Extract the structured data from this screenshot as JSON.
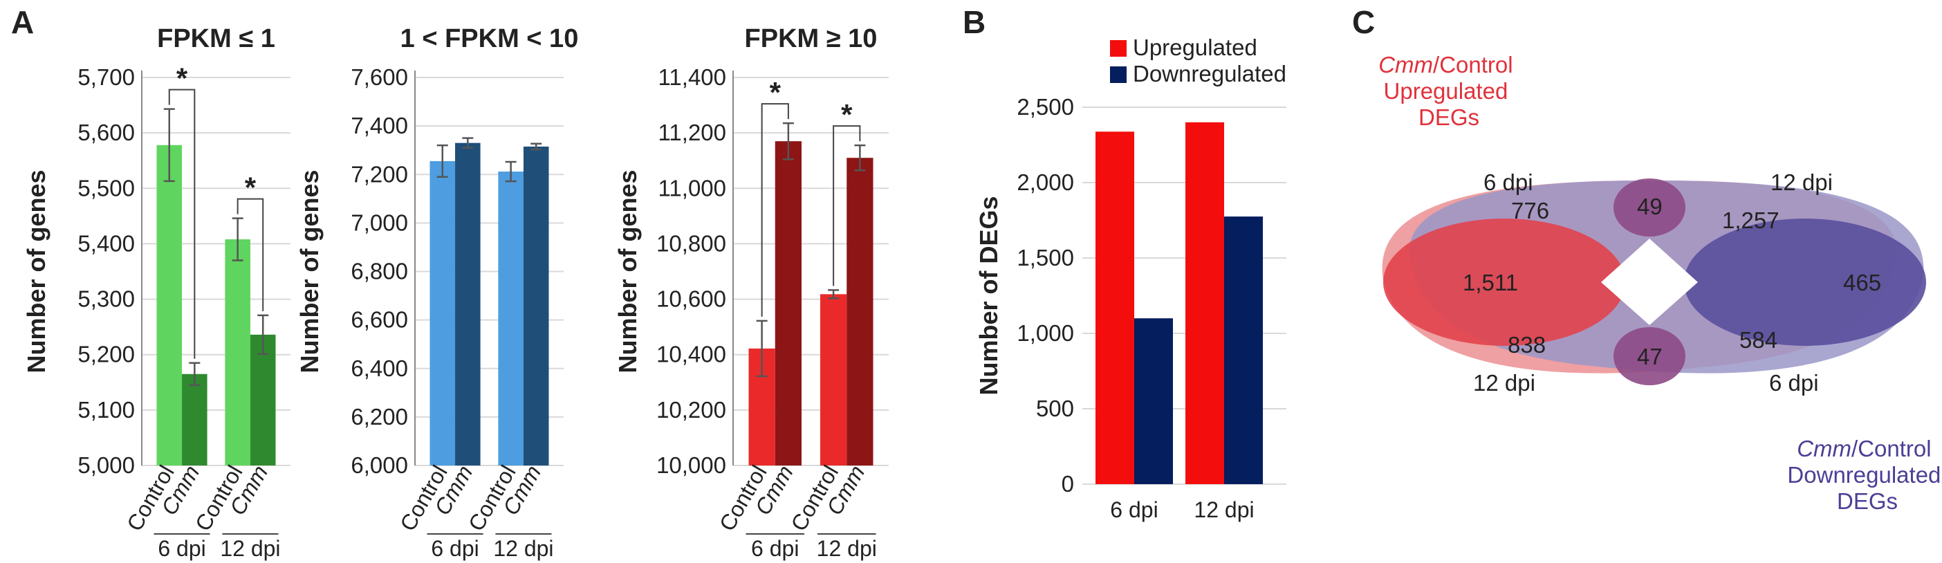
{
  "panels": {
    "a": "A",
    "b": "B",
    "c": "C"
  },
  "group_labels": [
    "6 dpi",
    "12 dpi"
  ],
  "category_labels": [
    "Control",
    "Cmm"
  ],
  "colors": {
    "green_control": "#5fd55f",
    "green_cmm": "#2f8a2f",
    "blue_control": "#4d9de0",
    "blue_cmm": "#1f4e79",
    "red_control": "#ea2a2a",
    "red_cmm": "#8e1515",
    "upregulated": "#f40d0d",
    "downregulated": "#041e5e",
    "venn_red": "#e84c55",
    "venn_blue": "#7a73b0"
  },
  "chart_data": [
    {
      "id": "fpkm_low",
      "type": "bar",
      "title": "FPKM ≤ 1",
      "ylabel": "Number of genes",
      "ylim": [
        5000,
        5700
      ],
      "yticks": [
        "5,000",
        "5,100",
        "5,200",
        "5,300",
        "5,400",
        "5,500",
        "5,600",
        "5,700"
      ],
      "groups": [
        "6 dpi",
        "12 dpi"
      ],
      "categories": [
        "Control",
        "Cmm"
      ],
      "series": [
        {
          "name": "Control",
          "values": [
            5578,
            5408
          ],
          "errors": [
            65,
            38
          ]
        },
        {
          "name": "Cmm",
          "values": [
            5165,
            5236
          ],
          "errors": [
            20,
            35
          ]
        }
      ],
      "significance": [
        "*",
        "*"
      ]
    },
    {
      "id": "fpkm_mid",
      "type": "bar",
      "title": "1 < FPKM < 10",
      "ylabel": "Number of genes",
      "ylim": [
        6000,
        7600
      ],
      "yticks": [
        "6,000",
        "6,200",
        "6,400",
        "6,600",
        "6,800",
        "7,000",
        "7,200",
        "7,400",
        "7,600"
      ],
      "groups": [
        "6 dpi",
        "12 dpi"
      ],
      "categories": [
        "Control",
        "Cmm"
      ],
      "series": [
        {
          "name": "Control",
          "values": [
            7255,
            7212
          ],
          "errors": [
            65,
            40
          ]
        },
        {
          "name": "Cmm",
          "values": [
            7330,
            7315
          ],
          "errors": [
            20,
            12
          ]
        }
      ],
      "significance": []
    },
    {
      "id": "fpkm_high",
      "type": "bar",
      "title": "FPKM ≥ 10",
      "ylabel": "Number of genes",
      "ylim": [
        10000,
        11400
      ],
      "yticks": [
        "10,000",
        "10,200",
        "10,400",
        "10,600",
        "10,800",
        "11,000",
        "11,200",
        "11,400"
      ],
      "groups": [
        "6 dpi",
        "12 dpi"
      ],
      "categories": [
        "Control",
        "Cmm"
      ],
      "series": [
        {
          "name": "Control",
          "values": [
            10422,
            10618
          ],
          "errors": [
            100,
            15
          ]
        },
        {
          "name": "Cmm",
          "values": [
            11170,
            11110
          ],
          "errors": [
            65,
            45
          ]
        }
      ],
      "significance": [
        "*",
        "*"
      ]
    },
    {
      "id": "degs",
      "type": "bar",
      "title": "",
      "ylabel": "Number of DEGs",
      "ylim": [
        0,
        2500
      ],
      "yticks": [
        "0",
        "500",
        "1,000",
        "1,500",
        "2,000",
        "2,500"
      ],
      "categories": [
        "6 dpi",
        "12 dpi"
      ],
      "series": [
        {
          "name": "Upregulated",
          "values": [
            2338,
            2400
          ]
        },
        {
          "name": "Downregulated",
          "values": [
            1100,
            1775
          ]
        }
      ],
      "legend": [
        "Upregulated",
        "Downregulated"
      ],
      "legend_position": "top"
    }
  ],
  "venn": {
    "up_title": [
      "Cmm/Control",
      "Upregulated",
      "DEGs"
    ],
    "down_title": [
      "Cmm/Control",
      "Downregulated",
      "DEGs"
    ],
    "labels": {
      "top_left": "6 dpi",
      "top_right": "12 dpi",
      "bottom_left": "12 dpi",
      "bottom_right": "6 dpi"
    },
    "counts": {
      "up_6_only": "1,511",
      "up_6_12": "776",
      "up6_down12": "49",
      "down_12_only_upper": "1,257",
      "down_only": "465",
      "up_12_only": "838",
      "up12_down6": "47",
      "down_6_12": "584"
    }
  }
}
